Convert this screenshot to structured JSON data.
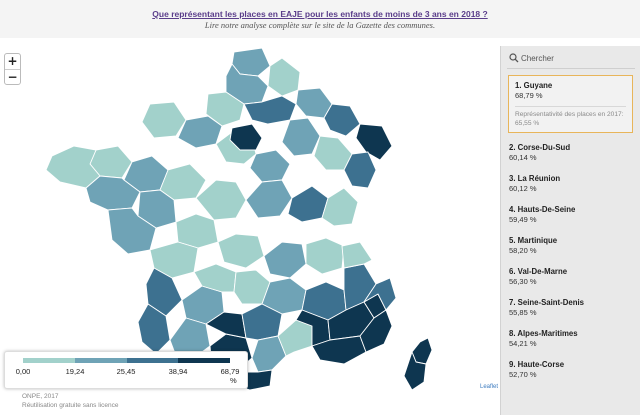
{
  "header": {
    "title": "Que représentant les places en EAJE pour les enfants de moins de 3 ans en 2018 ?",
    "subtitle": "Lire notre analyse complète sur le site de la Gazette des communes."
  },
  "map": {
    "zoom_in": "+",
    "zoom_out": "−",
    "attribution": "Leaflet",
    "colors": {
      "class1": "#a2d1cb",
      "class2": "#6fa3b6",
      "class3": "#3d7190",
      "class4": "#0e3650",
      "border": "#ffffff"
    }
  },
  "legend": {
    "breaks": [
      "0,00",
      "19,24",
      "25,45",
      "38,94",
      "68,79"
    ],
    "unit": "%",
    "colors": [
      "#a2d1cb",
      "#6fa3b6",
      "#3d7190",
      "#0e3650"
    ]
  },
  "footer": {
    "source": "ONPE, 2017",
    "license": "Réutilisation gratuite sans licence"
  },
  "sidebar": {
    "search_placeholder": "Chercher",
    "selected_description": "Représentativité des places en 2017: 65,55 %",
    "items": [
      {
        "name": "1. Guyane",
        "value": "68,79 %"
      },
      {
        "name": "2. Corse-Du-Sud",
        "value": "60,14 %"
      },
      {
        "name": "3. La Réunion",
        "value": "60,12 %"
      },
      {
        "name": "4. Hauts-De-Seine",
        "value": "59,49 %"
      },
      {
        "name": "5. Martinique",
        "value": "58,20 %"
      },
      {
        "name": "6. Val-De-Marne",
        "value": "56,30 %"
      },
      {
        "name": "7. Seine-Saint-Denis",
        "value": "55,85 %"
      },
      {
        "name": "8. Alpes-Maritimes",
        "value": "54,21 %"
      },
      {
        "name": "9. Haute-Corse",
        "value": "52,70 %"
      }
    ]
  }
}
